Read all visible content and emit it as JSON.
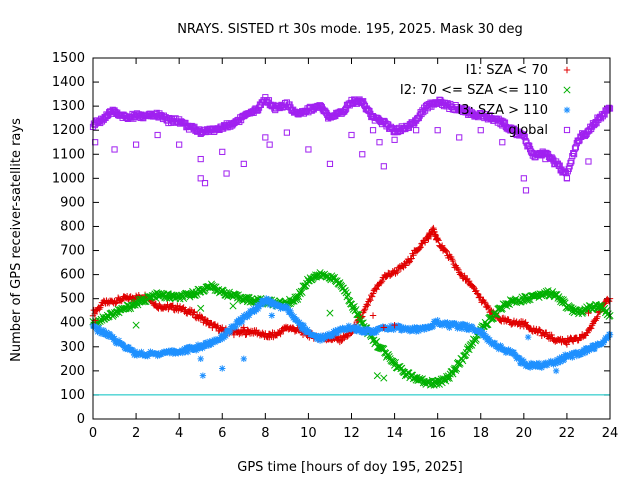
{
  "chart_data": {
    "type": "scatter",
    "title": "NRAYS. SISTED rt 30s mode. 195, 2025. Mask 30 deg",
    "xlabel": "GPS time [hours of doy 195, 2025]",
    "ylabel": "Number of GPS receiver-satellite rays",
    "xlim": [
      0,
      24
    ],
    "ylim": [
      0,
      1500
    ],
    "xticks": [
      "0",
      "2",
      "4",
      "6",
      "8",
      "10",
      "12",
      "14",
      "16",
      "18",
      "20",
      "22",
      "24"
    ],
    "yticks": [
      "0",
      "100",
      "200",
      "300",
      "400",
      "500",
      "600",
      "700",
      "800",
      "900",
      "1000",
      "1100",
      "1200",
      "1300",
      "1400",
      "1500"
    ],
    "legend_position": "top-right",
    "threshold_line": {
      "y": 100,
      "color": "#00c0c0"
    },
    "series": [
      {
        "name": "I1: SZA < 70",
        "marker": "+",
        "color": "#e00000",
        "x": [
          0,
          0.5,
          1,
          1.5,
          2,
          2.5,
          3,
          3.5,
          4,
          4.5,
          5,
          5.5,
          6,
          6.5,
          7,
          7.5,
          8,
          8.5,
          9,
          9.5,
          10,
          10.5,
          11,
          11.5,
          12,
          12.5,
          13,
          13.5,
          14,
          14.5,
          15,
          15.5,
          15.8,
          16,
          16.5,
          17,
          17.5,
          18,
          18.5,
          19,
          19.5,
          20,
          20.5,
          21,
          21.5,
          22,
          22.5,
          23,
          23.5,
          24
        ],
        "y": [
          440,
          480,
          490,
          500,
          505,
          510,
          470,
          465,
          460,
          445,
          420,
          390,
          370,
          360,
          360,
          365,
          345,
          350,
          380,
          370,
          350,
          340,
          335,
          330,
          360,
          430,
          520,
          590,
          610,
          640,
          700,
          750,
          785,
          740,
          680,
          610,
          560,
          500,
          440,
          410,
          400,
          395,
          370,
          350,
          330,
          325,
          330,
          360,
          450,
          500
        ]
      },
      {
        "name": "I2: 70 <= SZA <= 110",
        "marker": "x",
        "color": "#00b000",
        "x": [
          0,
          0.5,
          1,
          1.5,
          2,
          2.5,
          3,
          3.5,
          4,
          4.5,
          5,
          5.5,
          6,
          6.5,
          7,
          7.5,
          8,
          8.5,
          9,
          9.5,
          10,
          10.5,
          11,
          11.5,
          12,
          12.5,
          13,
          13.5,
          14,
          14.5,
          15,
          15.5,
          16,
          16.5,
          17,
          17.5,
          18,
          18.5,
          19,
          19.5,
          20,
          20.5,
          21,
          21.5,
          22,
          22.5,
          23,
          23.5,
          24
        ],
        "y": [
          395,
          420,
          440,
          460,
          480,
          500,
          515,
          510,
          505,
          515,
          535,
          550,
          530,
          510,
          500,
          490,
          490,
          480,
          480,
          505,
          580,
          600,
          590,
          560,
          480,
          400,
          330,
          280,
          230,
          190,
          165,
          150,
          150,
          175,
          230,
          300,
          370,
          420,
          470,
          490,
          500,
          510,
          525,
          515,
          470,
          440,
          460,
          470,
          430
        ]
      },
      {
        "name": "I3: SZA > 110",
        "marker": "*",
        "color": "#1e90ff",
        "x": [
          0,
          0.5,
          1,
          1.5,
          2,
          2.5,
          3,
          3.5,
          4,
          4.5,
          5,
          5.5,
          6,
          6.5,
          7,
          7.5,
          8,
          8.5,
          9,
          9.5,
          10,
          10.5,
          11,
          11.5,
          12,
          12.5,
          13,
          13.5,
          14,
          14.5,
          15,
          15.5,
          16,
          16.5,
          17,
          17.5,
          18,
          18.5,
          19,
          19.5,
          20,
          20.5,
          21,
          21.5,
          22,
          22.5,
          23,
          23.5,
          24
        ],
        "y": [
          380,
          360,
          330,
          300,
          270,
          270,
          270,
          280,
          280,
          290,
          300,
          320,
          340,
          380,
          420,
          455,
          495,
          470,
          460,
          400,
          360,
          335,
          350,
          370,
          380,
          370,
          360,
          380,
          380,
          375,
          370,
          385,
          400,
          390,
          385,
          380,
          360,
          320,
          290,
          270,
          230,
          220,
          225,
          240,
          260,
          270,
          290,
          310,
          350
        ]
      },
      {
        "name": "global",
        "marker": "square",
        "color": "#a020f0",
        "x": [
          0,
          0.5,
          1,
          1.5,
          2,
          2.5,
          3,
          3.5,
          4,
          4.5,
          5,
          5.5,
          6,
          6.5,
          7,
          7.5,
          8,
          8.5,
          9,
          9.5,
          10,
          10.5,
          11,
          11.5,
          12,
          12.5,
          13,
          13.5,
          14,
          14.5,
          15,
          15.5,
          16,
          16.5,
          17,
          17.5,
          18,
          18.5,
          19,
          19.5,
          20,
          20.5,
          21,
          21.5,
          22,
          22.5,
          23,
          23.5,
          24
        ],
        "y": [
          1220,
          1250,
          1280,
          1250,
          1260,
          1255,
          1265,
          1240,
          1240,
          1210,
          1195,
          1200,
          1210,
          1230,
          1255,
          1275,
          1330,
          1290,
          1305,
          1270,
          1285,
          1300,
          1250,
          1270,
          1320,
          1320,
          1250,
          1230,
          1200,
          1210,
          1240,
          1300,
          1320,
          1300,
          1290,
          1270,
          1260,
          1250,
          1230,
          1200,
          1170,
          1090,
          1110,
          1060,
          1010,
          1160,
          1200,
          1250,
          1290
        ]
      }
    ],
    "outliers": [
      {
        "series": "global",
        "x": [
          0.1,
          1,
          2,
          3,
          4,
          5,
          5,
          5.2,
          6,
          6.2,
          7,
          8,
          8.2,
          9,
          10,
          11,
          12,
          12.5,
          13,
          13.3,
          13.5,
          14,
          15,
          16,
          17,
          18,
          19,
          20,
          20.1,
          21,
          22,
          23
        ],
        "y": [
          1150,
          1120,
          1140,
          1180,
          1140,
          1080,
          1000,
          980,
          1110,
          1020,
          1060,
          1170,
          1140,
          1190,
          1120,
          1060,
          1180,
          1100,
          1200,
          1150,
          1050,
          1160,
          1200,
          1200,
          1170,
          1200,
          1150,
          1000,
          950,
          1080,
          1000,
          1070
        ]
      },
      {
        "series": "I1: SZA < 70",
        "x": [
          0.1,
          7,
          8.2,
          13,
          13.5,
          14,
          22,
          23
        ],
        "y": [
          410,
          380,
          340,
          430,
          380,
          390,
          310,
          440
        ]
      },
      {
        "series": "I2: 70 <= SZA <= 110",
        "x": [
          2,
          5,
          6.5,
          11,
          13.2,
          13.5
        ],
        "y": [
          390,
          460,
          470,
          440,
          180,
          170
        ]
      },
      {
        "series": "I3: SZA > 110",
        "x": [
          5,
          5.1,
          6,
          7,
          8.3,
          20.2,
          21.5
        ],
        "y": [
          250,
          180,
          210,
          250,
          430,
          340,
          200
        ]
      }
    ]
  }
}
